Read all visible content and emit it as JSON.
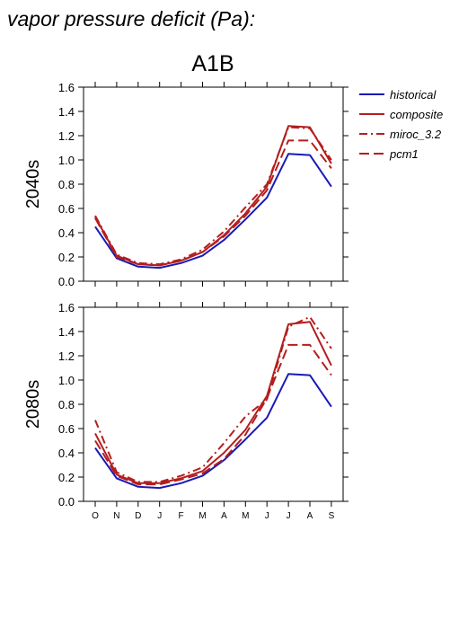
{
  "heading": "vapor pressure deficit (Pa):",
  "colors": {
    "historical": "#1a1ab4",
    "future": "#b41e1e"
  },
  "chart_data": [
    {
      "type": "line",
      "title": "A1B",
      "ylabel": "2040s",
      "categories": [
        "O",
        "N",
        "D",
        "J",
        "F",
        "M",
        "A",
        "M",
        "J",
        "J",
        "A",
        "S"
      ],
      "ylim": [
        0,
        1.6
      ],
      "yticks": [
        "0.0",
        "0.2",
        "0.4",
        "0.6",
        "0.8",
        "1.0",
        "1.2",
        "1.4",
        "1.6"
      ],
      "series": [
        {
          "name": "historical",
          "style": "solid",
          "color": "#1a1ab4",
          "values": [
            0.45,
            0.19,
            0.12,
            0.11,
            0.15,
            0.21,
            0.34,
            0.51,
            0.69,
            1.05,
            1.04,
            0.78
          ]
        },
        {
          "name": "composite",
          "style": "solid",
          "color": "#b41e1e",
          "values": [
            0.53,
            0.21,
            0.14,
            0.13,
            0.17,
            0.24,
            0.38,
            0.56,
            0.78,
            1.28,
            1.27,
            0.97
          ]
        },
        {
          "name": "miroc_3.2",
          "style": "dashdot",
          "color": "#b41e1e",
          "values": [
            0.54,
            0.22,
            0.15,
            0.14,
            0.18,
            0.26,
            0.41,
            0.61,
            0.8,
            1.27,
            1.26,
            1.0
          ]
        },
        {
          "name": "pcm1",
          "style": "dash",
          "color": "#b41e1e",
          "values": [
            0.52,
            0.2,
            0.14,
            0.13,
            0.17,
            0.24,
            0.37,
            0.54,
            0.75,
            1.16,
            1.16,
            0.93
          ]
        }
      ]
    },
    {
      "type": "line",
      "title": "",
      "ylabel": "2080s",
      "categories": [
        "O",
        "N",
        "D",
        "J",
        "F",
        "M",
        "A",
        "M",
        "J",
        "J",
        "A",
        "S"
      ],
      "ylim": [
        0,
        1.6
      ],
      "yticks": [
        "0.0",
        "0.2",
        "0.4",
        "0.6",
        "0.8",
        "1.0",
        "1.2",
        "1.4",
        "1.6"
      ],
      "series": [
        {
          "name": "historical",
          "style": "solid",
          "color": "#1a1ab4",
          "values": [
            0.44,
            0.19,
            0.12,
            0.11,
            0.15,
            0.21,
            0.34,
            0.51,
            0.69,
            1.05,
            1.04,
            0.78
          ]
        },
        {
          "name": "composite",
          "style": "solid",
          "color": "#b41e1e",
          "values": [
            0.56,
            0.22,
            0.15,
            0.15,
            0.19,
            0.25,
            0.4,
            0.59,
            0.87,
            1.46,
            1.48,
            1.12
          ]
        },
        {
          "name": "miroc_3.2",
          "style": "dashdot",
          "color": "#b41e1e",
          "values": [
            0.67,
            0.24,
            0.16,
            0.16,
            0.21,
            0.28,
            0.48,
            0.7,
            0.84,
            1.44,
            1.52,
            1.26
          ]
        },
        {
          "name": "pcm1",
          "style": "dash",
          "color": "#b41e1e",
          "values": [
            0.5,
            0.21,
            0.14,
            0.14,
            0.18,
            0.23,
            0.35,
            0.55,
            0.85,
            1.29,
            1.29,
            1.04
          ]
        }
      ]
    }
  ],
  "legend": {
    "placement": "top-right",
    "items": [
      {
        "label": "historical",
        "style": "solid",
        "color": "#1a1ab4"
      },
      {
        "label": "composite",
        "style": "solid",
        "color": "#b41e1e"
      },
      {
        "label": "miroc_3.2",
        "style": "dashdot",
        "color": "#b41e1e"
      },
      {
        "label": "pcm1",
        "style": "dash",
        "color": "#b41e1e"
      }
    ]
  }
}
